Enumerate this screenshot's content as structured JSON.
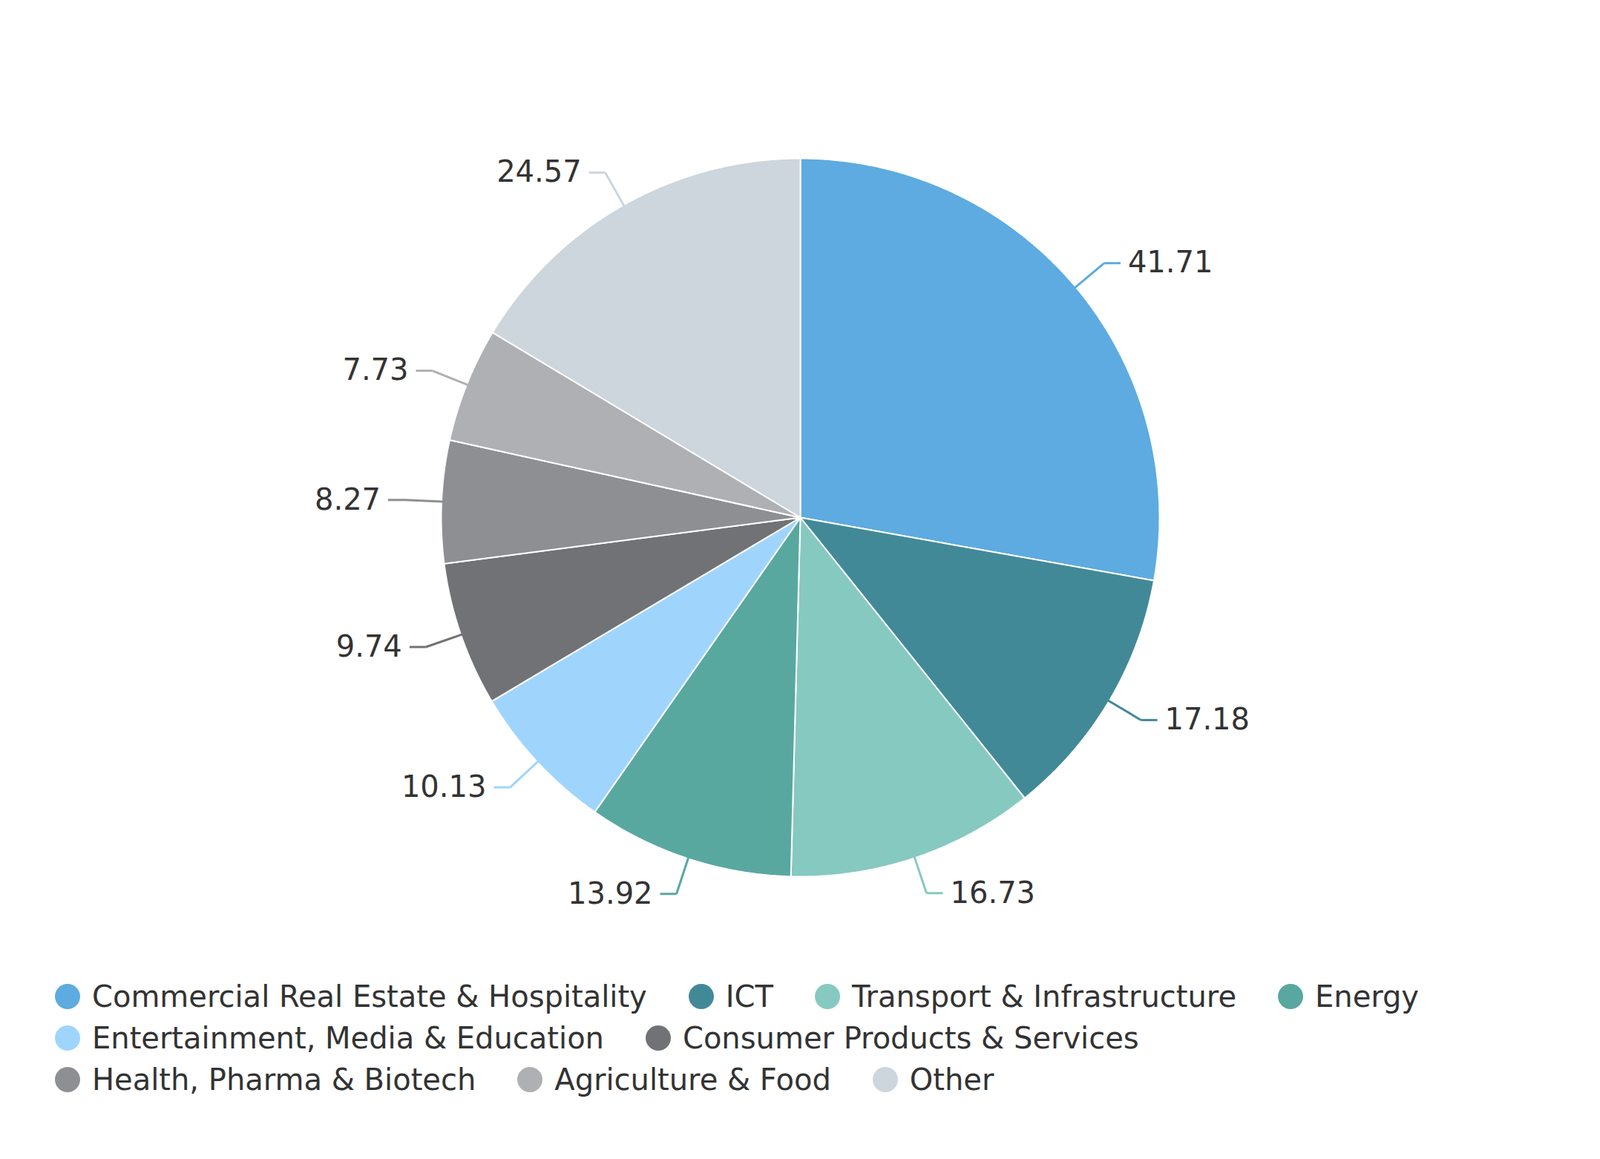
{
  "chart_data": {
    "type": "pie",
    "categories": [
      "Commercial Real Estate & Hospitality",
      "ICT",
      "Transport & Infrastructure",
      "Energy",
      "Entertainment, Media & Education",
      "Consumer Products & Services",
      "Health, Pharma & Biotech",
      "Agriculture & Food",
      "Other"
    ],
    "values": [
      41.71,
      17.18,
      16.73,
      13.92,
      10.13,
      9.74,
      8.27,
      7.73,
      24.57
    ],
    "colors": [
      "#5dabe0",
      "#428998",
      "#86c9c1",
      "#58a8a0",
      "#9fd5fd",
      "#717275",
      "#8e8f93",
      "#afb0b4",
      "#cdd5dd"
    ],
    "data_labels": true,
    "legend": "bottom"
  }
}
